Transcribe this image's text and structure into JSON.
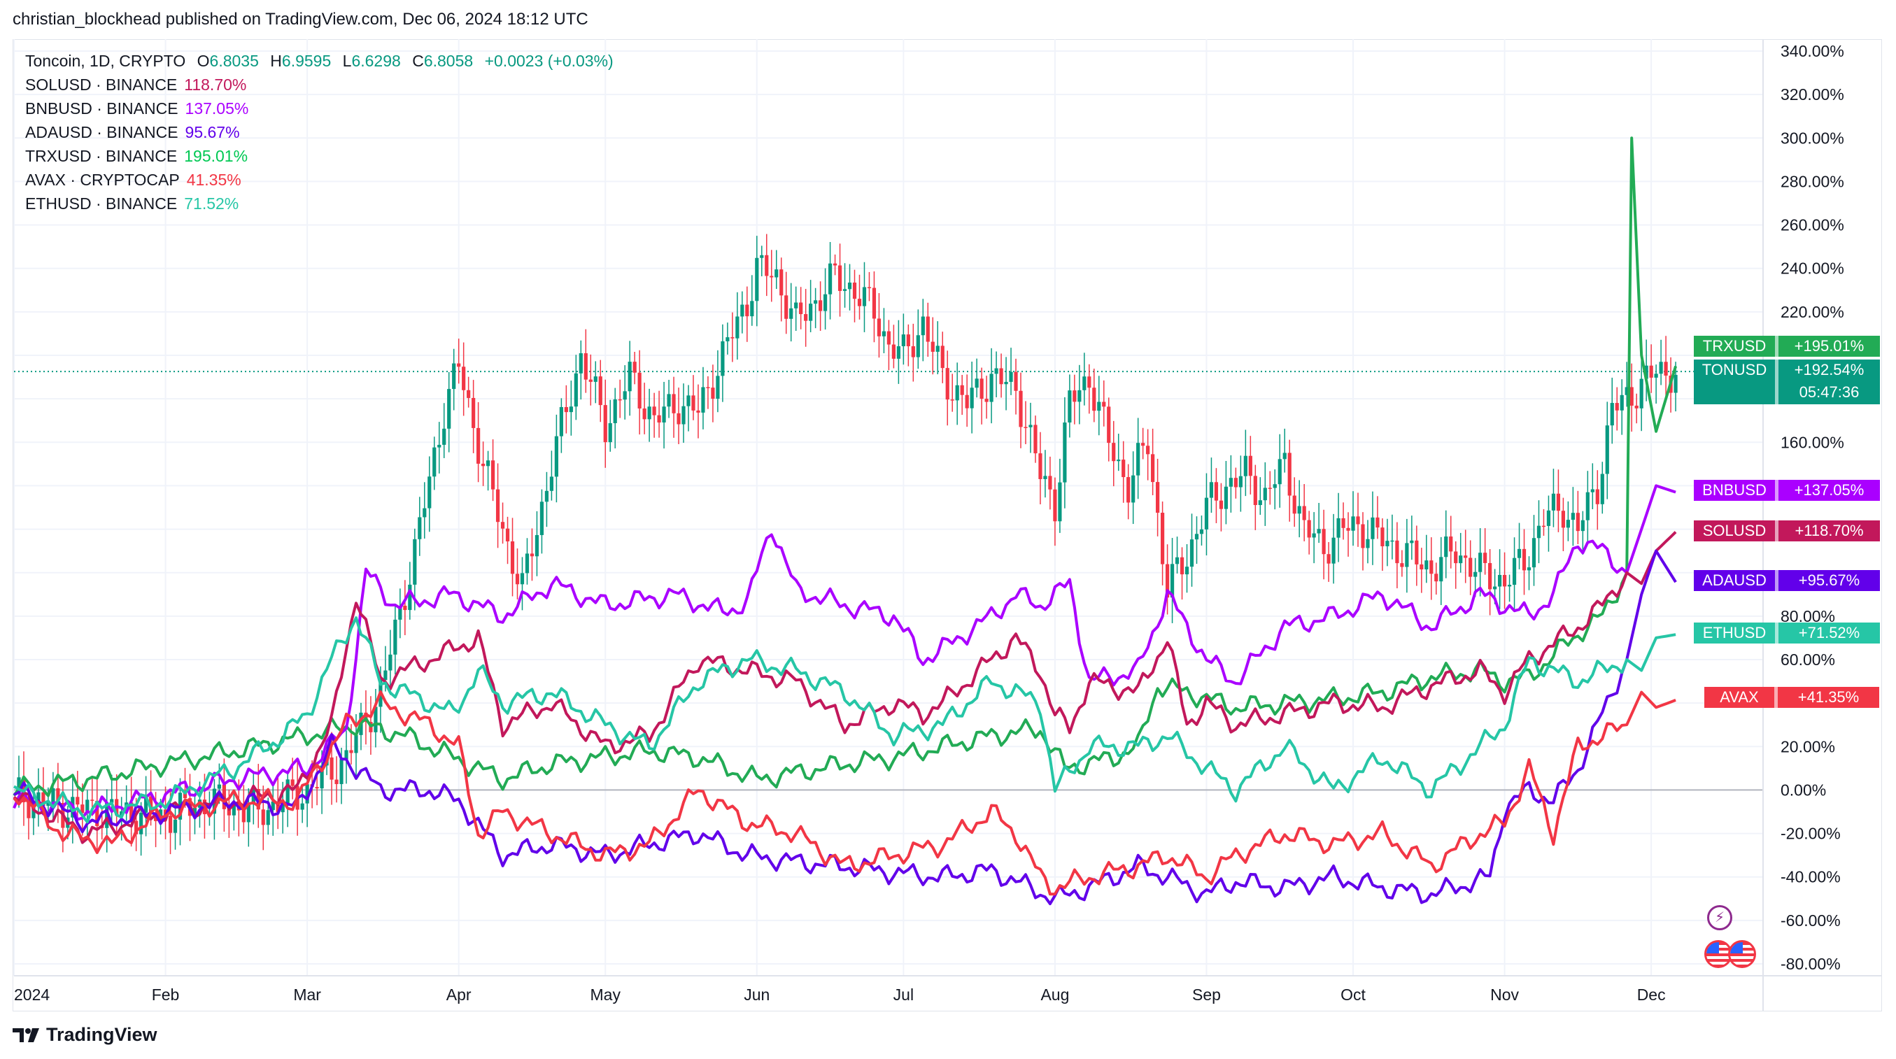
{
  "header": {
    "publish_text": "christian_blockhead published on TradingView.com, Dec 06, 2024 18:12 UTC"
  },
  "footer": {
    "brand": "TradingView"
  },
  "legend": {
    "main": {
      "symbol": "Toncoin, 1D, CRYPTO",
      "o_label": "O",
      "o": "6.8035",
      "h_label": "H",
      "h": "6.9595",
      "l_label": "L",
      "l": "6.6298",
      "c_label": "C",
      "c": "6.8058",
      "change": "+0.0023 (+0.03%)",
      "color": "#089981"
    },
    "rows": [
      {
        "symbol": "SOLUSD · BINANCE",
        "value": "118.70%",
        "color": "#c2185b"
      },
      {
        "symbol": "BNBUSD · BINANCE",
        "value": "137.05%",
        "color": "#aa00ff"
      },
      {
        "symbol": "ADAUSD · BINANCE",
        "value": "95.67%",
        "color": "#6200ea"
      },
      {
        "symbol": "TRXUSD · BINANCE",
        "value": "195.01%",
        "color": "#00c853"
      },
      {
        "symbol": "AVAX · CRYPTOCAP",
        "value": "41.35%",
        "color": "#f23645"
      },
      {
        "symbol": "ETHUSD · BINANCE",
        "value": "71.52%",
        "color": "#26c6a6"
      }
    ]
  },
  "badges": [
    {
      "name": "TRXUSD",
      "pct": "+195.01%",
      "value": 195.01,
      "color": "#22ab55"
    },
    {
      "name": "TONUSD",
      "pct": "+192.54%",
      "value": 192.54,
      "color": "#089981",
      "countdown": "05:47:36"
    },
    {
      "name": "BNBUSD",
      "pct": "+137.05%",
      "value": 137.05,
      "color": "#aa00ff"
    },
    {
      "name": "SOLUSD",
      "pct": "+118.70%",
      "value": 118.7,
      "color": "#c2185b"
    },
    {
      "name": "ADAUSD",
      "pct": "+95.67%",
      "value": 95.67,
      "color": "#6200ea"
    },
    {
      "name": "ETHUSD",
      "pct": "+71.52%",
      "value": 71.52,
      "color": "#26c6a6"
    },
    {
      "name": "AVAX",
      "pct": "+41.35%",
      "value": 41.35,
      "color": "#f23645"
    }
  ],
  "chart_data": {
    "type": "line",
    "title": "Toncoin, 1D, CRYPTO",
    "y_unit": "%",
    "ylim": [
      -80,
      340
    ],
    "y_ticks": [
      "340.00%",
      "320.00%",
      "300.00%",
      "280.00%",
      "260.00%",
      "240.00%",
      "220.00%",
      "160.00%",
      "80.00%",
      "60.00%",
      "20.00%",
      "0.00%",
      "-20.00%",
      "-40.00%",
      "-60.00%",
      "-80.00%"
    ],
    "y_tick_values": [
      340,
      320,
      300,
      280,
      260,
      240,
      220,
      160,
      80,
      60,
      20,
      0,
      -20,
      -40,
      -60,
      -80
    ],
    "x_ticks": [
      "2024",
      "Feb",
      "Mar",
      "Apr",
      "May",
      "Jun",
      "Jul",
      "Aug",
      "Sep",
      "Oct",
      "Nov",
      "Dec"
    ],
    "x_tick_days": [
      0,
      31,
      60,
      91,
      121,
      152,
      182,
      213,
      244,
      274,
      305,
      335
    ],
    "x_day_range": [
      0,
      345
    ],
    "grid": true,
    "reference_line": 0,
    "last_price_line": 192.54,
    "candles_ton": {
      "day": [
        0,
        10,
        20,
        31,
        40,
        50,
        60,
        68,
        75,
        82,
        88,
        91,
        96,
        100,
        104,
        110,
        116,
        121,
        126,
        131,
        136,
        140,
        145,
        150,
        152,
        156,
        160,
        164,
        168,
        172,
        176,
        179,
        182,
        186,
        190,
        195,
        200,
        205,
        210,
        213,
        216,
        220,
        224,
        228,
        232,
        236,
        240,
        244,
        248,
        252,
        256,
        260,
        264,
        268,
        272,
        275,
        280,
        285,
        290,
        295,
        300,
        305,
        309,
        313,
        317,
        320,
        324,
        327,
        330,
        333,
        336,
        340
      ],
      "pct": [
        -2,
        -8,
        -10,
        -12,
        -5,
        -10,
        0,
        15,
        45,
        110,
        175,
        195,
        150,
        120,
        92,
        150,
        200,
        168,
        190,
        170,
        178,
        174,
        200,
        225,
        240,
        236,
        215,
        225,
        236,
        230,
        220,
        205,
        200,
        215,
        190,
        178,
        190,
        185,
        145,
        132,
        178,
        190,
        160,
        140,
        160,
        92,
        108,
        130,
        140,
        145,
        135,
        150,
        120,
        112,
        120,
        122,
        115,
        108,
        102,
        110,
        100,
        96,
        105,
        125,
        130,
        120,
        140,
        175,
        180,
        187,
        192,
        192.54
      ]
    },
    "series": [
      {
        "name": "TRXUSD",
        "color": "#22ab55",
        "last": 195.01,
        "day": [
          0,
          15,
          31,
          45,
          60,
          70,
          75,
          80,
          90,
          100,
          110,
          120,
          130,
          140,
          152,
          160,
          170,
          180,
          190,
          200,
          210,
          215,
          225,
          230,
          234,
          240,
          250,
          260,
          270,
          280,
          290,
          300,
          305,
          310,
          320,
          325,
          330,
          331,
          333,
          336,
          340
        ],
        "pct": [
          0,
          5,
          12,
          18,
          25,
          30,
          28,
          25,
          15,
          5,
          12,
          15,
          18,
          15,
          5,
          8,
          12,
          15,
          20,
          25,
          28,
          10,
          15,
          20,
          48,
          45,
          38,
          40,
          42,
          45,
          52,
          55,
          50,
          52,
          72,
          80,
          100,
          300,
          200,
          165,
          195.01
        ]
      },
      {
        "name": "BNBUSD",
        "color": "#aa00ff",
        "last": 137.05,
        "day": [
          0,
          15,
          31,
          45,
          60,
          68,
          72,
          78,
          90,
          100,
          110,
          121,
          135,
          145,
          150,
          155,
          160,
          170,
          180,
          186,
          190,
          200,
          205,
          210,
          216,
          220,
          230,
          236,
          244,
          250,
          260,
          270,
          280,
          290,
          300,
          305,
          310,
          315,
          320,
          325,
          330,
          333,
          336,
          340
        ],
        "pct": [
          -5,
          -10,
          -2,
          5,
          10,
          28,
          100,
          85,
          90,
          80,
          95,
          85,
          90,
          82,
          86,
          122,
          92,
          85,
          80,
          60,
          65,
          80,
          90,
          85,
          95,
          50,
          55,
          90,
          60,
          50,
          75,
          80,
          90,
          75,
          90,
          85,
          80,
          90,
          115,
          110,
          100,
          120,
          140,
          137.05
        ]
      },
      {
        "name": "SOLUSD",
        "color": "#c2185b",
        "last": 118.7,
        "day": [
          0,
          15,
          31,
          45,
          58,
          65,
          70,
          75,
          85,
          95,
          100,
          110,
          121,
          130,
          140,
          150,
          160,
          170,
          180,
          186,
          190,
          200,
          205,
          210,
          213,
          216,
          220,
          230,
          236,
          240,
          244,
          250,
          260,
          270,
          280,
          290,
          300,
          305,
          310,
          320,
          325,
          330,
          333,
          336,
          340
        ],
        "pct": [
          -3,
          -20,
          -10,
          -5,
          0,
          30,
          90,
          50,
          60,
          70,
          30,
          40,
          20,
          25,
          60,
          55,
          50,
          30,
          40,
          35,
          40,
          60,
          70,
          55,
          35,
          28,
          50,
          45,
          70,
          30,
          40,
          30,
          35,
          40,
          38,
          48,
          55,
          45,
          60,
          75,
          85,
          100,
          95,
          110,
          118.7
        ]
      },
      {
        "name": "ADAUSD",
        "color": "#6200ea",
        "last": 95.67,
        "day": [
          0,
          15,
          31,
          45,
          58,
          65,
          70,
          75,
          85,
          91,
          100,
          110,
          121,
          130,
          140,
          150,
          160,
          170,
          180,
          190,
          200,
          213,
          220,
          230,
          236,
          244,
          250,
          260,
          270,
          280,
          290,
          302,
          305,
          310,
          315,
          320,
          325,
          330,
          333,
          336,
          340
        ],
        "pct": [
          0,
          -15,
          -10,
          -5,
          -8,
          20,
          10,
          0,
          0,
          -5,
          -30,
          -25,
          -30,
          -25,
          -20,
          -30,
          -33,
          -35,
          -38,
          -40,
          -37,
          -50,
          -45,
          -35,
          -40,
          -48,
          -42,
          -45,
          -40,
          -45,
          -48,
          -40,
          -8,
          0,
          -5,
          10,
          35,
          60,
          90,
          110,
          95.67
        ]
      },
      {
        "name": "AVAX",
        "color": "#f23645",
        "last": 41.35,
        "day": [
          0,
          10,
          20,
          31,
          45,
          58,
          62,
          68,
          75,
          85,
          91,
          95,
          100,
          110,
          121,
          130,
          140,
          150,
          160,
          170,
          180,
          190,
          200,
          205,
          210,
          213,
          220,
          230,
          236,
          244,
          250,
          260,
          270,
          280,
          290,
          300,
          305,
          310,
          315,
          320,
          325,
          330,
          333,
          336,
          340
        ],
        "pct": [
          0,
          -20,
          -25,
          -10,
          -5,
          -5,
          10,
          30,
          40,
          30,
          20,
          -20,
          -10,
          -20,
          -30,
          -25,
          0,
          -15,
          -20,
          -35,
          -30,
          -25,
          -10,
          -20,
          -40,
          -45,
          -40,
          -35,
          -30,
          -40,
          -30,
          -20,
          -25,
          -20,
          -35,
          -20,
          -15,
          10,
          -20,
          20,
          25,
          30,
          45,
          38,
          41.35
        ]
      },
      {
        "name": "ETHUSD",
        "color": "#26c6a6",
        "last": 71.52,
        "day": [
          0,
          15,
          31,
          45,
          55,
          60,
          65,
          70,
          75,
          85,
          90,
          95,
          100,
          110,
          121,
          130,
          140,
          150,
          160,
          170,
          180,
          190,
          200,
          210,
          213,
          220,
          230,
          236,
          244,
          250,
          260,
          270,
          280,
          290,
          300,
          305,
          310,
          320,
          330,
          333,
          336,
          340
        ],
        "pct": [
          0,
          -10,
          -5,
          10,
          25,
          35,
          60,
          80,
          50,
          40,
          35,
          55,
          40,
          45,
          30,
          20,
          50,
          60,
          55,
          45,
          25,
          30,
          50,
          40,
          0,
          20,
          20,
          25,
          10,
          0,
          20,
          0,
          15,
          0,
          20,
          30,
          60,
          50,
          60,
          55,
          70,
          71.52
        ]
      }
    ]
  }
}
